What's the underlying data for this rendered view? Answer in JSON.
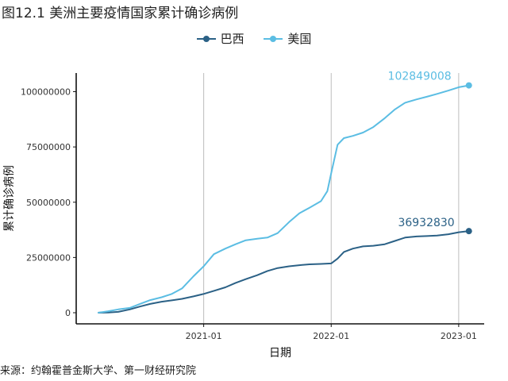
{
  "figure_title": "图12.1 美洲主要疫情国家累计确诊病例",
  "source_note": "来源：约翰霍普金斯大学、第一财经研究院",
  "chart_data": {
    "type": "line",
    "title": "美洲主要疫情国家累计确诊病例",
    "xlabel": "日期",
    "ylabel": "累计确诊病例",
    "x_range": [
      2020.0,
      2023.2
    ],
    "ylim": [
      0,
      110000000
    ],
    "x_ticks": [
      {
        "value": 2021.0,
        "label": "2021-01"
      },
      {
        "value": 2022.0,
        "label": "2022-01"
      },
      {
        "value": 2023.0,
        "label": "2023-01"
      }
    ],
    "y_ticks": [
      {
        "value": 0,
        "label": "0"
      },
      {
        "value": 25000000,
        "label": "25000000"
      },
      {
        "value": 50000000,
        "label": "50000000"
      },
      {
        "value": 75000000,
        "label": "75000000"
      },
      {
        "value": 100000000,
        "label": "100000000"
      }
    ],
    "grid": "vertical-major",
    "legend": "top-center",
    "series": [
      {
        "name": "巴西",
        "color": "#2b6186",
        "end_label": "36932830",
        "points": [
          [
            2020.17,
            0
          ],
          [
            2020.25,
            100000
          ],
          [
            2020.33,
            400000
          ],
          [
            2020.42,
            1500000
          ],
          [
            2020.5,
            2800000
          ],
          [
            2020.58,
            4000000
          ],
          [
            2020.67,
            5000000
          ],
          [
            2020.75,
            5600000
          ],
          [
            2020.83,
            6300000
          ],
          [
            2020.92,
            7400000
          ],
          [
            2021.0,
            8500000
          ],
          [
            2021.08,
            9900000
          ],
          [
            2021.17,
            11500000
          ],
          [
            2021.25,
            13500000
          ],
          [
            2021.33,
            15200000
          ],
          [
            2021.42,
            17000000
          ],
          [
            2021.5,
            18900000
          ],
          [
            2021.58,
            20200000
          ],
          [
            2021.67,
            21000000
          ],
          [
            2021.75,
            21500000
          ],
          [
            2021.83,
            21900000
          ],
          [
            2021.92,
            22100000
          ],
          [
            2022.0,
            22300000
          ],
          [
            2022.05,
            24500000
          ],
          [
            2022.1,
            27500000
          ],
          [
            2022.17,
            29000000
          ],
          [
            2022.25,
            30000000
          ],
          [
            2022.33,
            30300000
          ],
          [
            2022.42,
            31000000
          ],
          [
            2022.5,
            32500000
          ],
          [
            2022.58,
            34000000
          ],
          [
            2022.67,
            34500000
          ],
          [
            2022.75,
            34700000
          ],
          [
            2022.83,
            34900000
          ],
          [
            2022.92,
            35500000
          ],
          [
            2023.0,
            36400000
          ],
          [
            2023.08,
            36932830
          ]
        ]
      },
      {
        "name": "美国",
        "color": "#5bbde3",
        "end_label": "102849008",
        "points": [
          [
            2020.17,
            0
          ],
          [
            2020.25,
            700000
          ],
          [
            2020.33,
            1500000
          ],
          [
            2020.42,
            2200000
          ],
          [
            2020.5,
            4000000
          ],
          [
            2020.58,
            5700000
          ],
          [
            2020.67,
            7000000
          ],
          [
            2020.75,
            8500000
          ],
          [
            2020.83,
            11000000
          ],
          [
            2020.92,
            16500000
          ],
          [
            2021.0,
            21000000
          ],
          [
            2021.08,
            26500000
          ],
          [
            2021.17,
            29000000
          ],
          [
            2021.25,
            31000000
          ],
          [
            2021.33,
            32800000
          ],
          [
            2021.42,
            33500000
          ],
          [
            2021.5,
            34000000
          ],
          [
            2021.58,
            36000000
          ],
          [
            2021.67,
            41000000
          ],
          [
            2021.75,
            45000000
          ],
          [
            2021.83,
            47500000
          ],
          [
            2021.92,
            50500000
          ],
          [
            2021.97,
            55000000
          ],
          [
            2022.0,
            63000000
          ],
          [
            2022.05,
            76000000
          ],
          [
            2022.1,
            79000000
          ],
          [
            2022.17,
            80000000
          ],
          [
            2022.25,
            81500000
          ],
          [
            2022.33,
            84000000
          ],
          [
            2022.42,
            88000000
          ],
          [
            2022.5,
            92000000
          ],
          [
            2022.58,
            95000000
          ],
          [
            2022.67,
            96500000
          ],
          [
            2022.75,
            97700000
          ],
          [
            2022.83,
            99000000
          ],
          [
            2022.92,
            100500000
          ],
          [
            2023.0,
            102000000
          ],
          [
            2023.08,
            102849008
          ]
        ]
      }
    ]
  }
}
